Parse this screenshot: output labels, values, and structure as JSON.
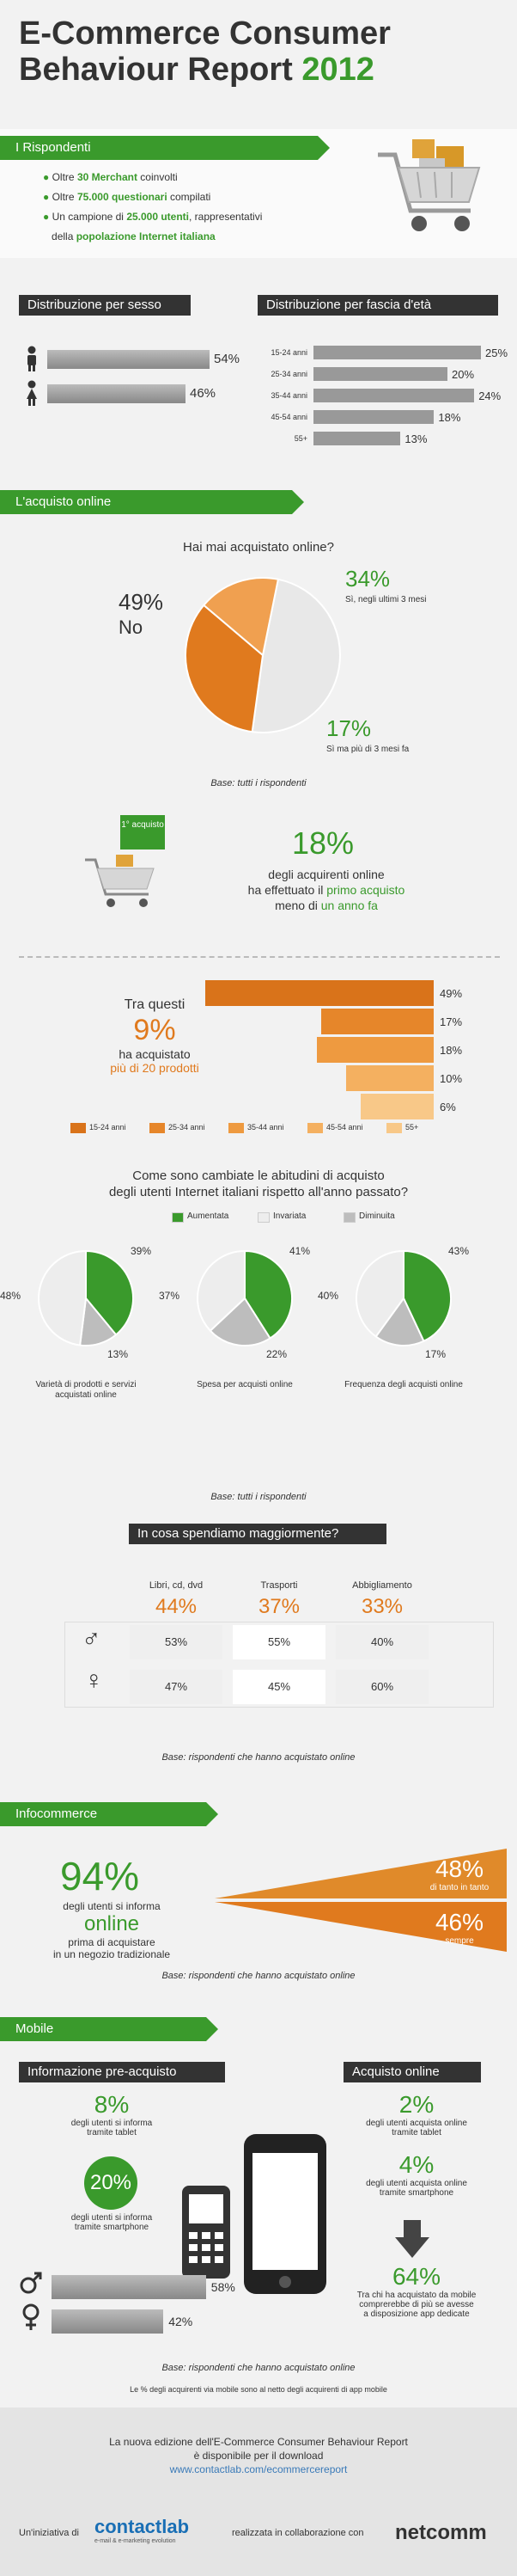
{
  "header": {
    "title_line1": "E-Commerce Consumer",
    "title_line2": "Behaviour Report",
    "year": "2012"
  },
  "respondents": {
    "title": "I Rispondenti",
    "item1_pre": "Oltre ",
    "item1_bold": "30 Merchant",
    "item1_post": " coinvolti",
    "item2_pre": "Oltre ",
    "item2_bold": "75.000 questionari",
    "item2_post": " compilati",
    "item3_pre": "Un campione di ",
    "item3_bold": "25.000 utenti",
    "item3_post": ", rappresentativi",
    "item4_pre": "della ",
    "item4_bold": "popolazione Internet italiana"
  },
  "gender_title": "Distribuzione per sesso",
  "age_title": "Distribuzione per fascia d'età",
  "purchase_title": "L'acquisto online",
  "pie_question": "Hai mai acquistato online?",
  "pie_no_pct": "49%",
  "pie_no_label": "No",
  "pie_recent_pct": "34%",
  "pie_recent_label": "Sì, negli ultimi 3 mesi",
  "pie_old_pct": "17%",
  "pie_old_label": "Sì ma più di 3 mesi fa",
  "base_all": "Base: tutti i rispondenti",
  "first_badge": "1° acquisto",
  "first_pct": "18%",
  "first_line1": "degli acquirenti online",
  "first_line2_pre": "ha effettuato il ",
  "first_line2_bold": "primo acquisto",
  "first_line3_pre": "meno di ",
  "first_line3_bold": "un anno fa",
  "twenty_line1": "Tra questi",
  "twenty_pct": "9%",
  "twenty_line2": "ha acquistato",
  "twenty_line3": "più di 20 prodotti",
  "habits_question_l1": "Come sono cambiate le abitudini di acquisto",
  "habits_question_l2": "degli utenti Internet italiani rispetto all'anno passato?",
  "habits_legend": [
    "Aumentata",
    "Invariata",
    "Diminuita"
  ],
  "habits": [
    {
      "label": "Varietà di prodotti e servizi acquistati online",
      "up": "39%",
      "same": "48%",
      "down": "13%"
    },
    {
      "label": "Spesa per acquisti online",
      "up": "41%",
      "same": "37%",
      "down": "22%"
    },
    {
      "label": "Frequenza degli acquisti online",
      "up": "43%",
      "same": "40%",
      "down": "17%"
    }
  ],
  "spend_title": "In cosa spendiamo maggiormente?",
  "spend_cols": [
    {
      "label": "Libri, cd, dvd",
      "total": "44%",
      "male": "53%",
      "female": "47%"
    },
    {
      "label": "Trasporti",
      "total": "37%",
      "male": "55%",
      "female": "45%"
    },
    {
      "label": "Abbigliamento",
      "total": "33%",
      "male": "40%",
      "female": "60%"
    }
  ],
  "base_buyers": "Base: rispondenti che hanno acquistato online",
  "info_title": "Infocommerce",
  "info_pct": "94%",
  "info_l1": "degli utenti si informa",
  "info_l2": "online",
  "info_l3": "prima di acquistare",
  "info_l4": "in un negozio tradizionale",
  "info_a_pct": "48%",
  "info_a_label": "di tanto in tanto",
  "info_b_pct": "46%",
  "info_b_label": "sempre",
  "mobile_title": "Mobile",
  "pre_title": "Informazione pre-acquisto",
  "pre1_pct": "8%",
  "pre1_l1": "degli utenti si informa",
  "pre1_l2": "tramite tablet",
  "pre2_pct": "20%",
  "pre2_l1": "degli utenti si informa",
  "pre2_l2": "tramite smartphone",
  "buy_title": "Acquisto online",
  "buy1_pct": "2%",
  "buy1_l1": "degli utenti acquista online",
  "buy1_l2": "tramite tablet",
  "buy2_pct": "4%",
  "buy2_l1": "degli utenti acquista online",
  "buy2_l2": "tramite smartphone",
  "buy3_pct": "64%",
  "buy3_l1": "Tra chi ha acquistato da mobile",
  "buy3_l2": "comprerebbe di più se avesse",
  "buy3_l3": "a disposizione app dedicate",
  "mobile_note": "Le % degli acquirenti via mobile sono al netto degli acquirenti di app mobile",
  "footer_l1": "La nuova edizione dell'E-Commerce Consumer Behaviour Report",
  "footer_l2": "è disponibile per il download",
  "footer_url": "www.contactlab.com/ecommercereport",
  "footer_init": "Un'iniziativa di",
  "footer_brand1": "contactlab",
  "footer_brand1_sub": "e-mail & e-marketing evolution",
  "footer_collab": "realizzata in collaborazione con",
  "footer_brand2": "netcomm",
  "colors": {
    "green": "#3a9a2c",
    "orange": "#e07a1e",
    "gray": "#9a9a9a",
    "light": "#e6e6e6"
  },
  "chart_data": [
    {
      "type": "bar",
      "title": "Distribuzione per sesso",
      "categories": [
        "Uomini",
        "Donne"
      ],
      "values": [
        54,
        46
      ]
    },
    {
      "type": "bar",
      "title": "Distribuzione per fascia d'età",
      "categories": [
        "15-24 anni",
        "25-34 anni",
        "35-44 anni",
        "45-54 anni",
        "55+"
      ],
      "values": [
        25,
        20,
        24,
        18,
        13
      ]
    },
    {
      "type": "pie",
      "title": "Hai mai acquistato online?",
      "categories": [
        "No",
        "Sì, negli ultimi 3 mesi",
        "Sì ma più di 3 mesi fa"
      ],
      "values": [
        49,
        34,
        17
      ]
    },
    {
      "type": "bar",
      "categories": [
        "15-24 anni",
        "25-34 anni",
        "35-44 anni",
        "45-54 anni",
        "55+"
      ],
      "values": [
        49,
        17,
        18,
        10,
        6
      ]
    },
    {
      "type": "pie",
      "title": "Varietà di prodotti e servizi acquistati online",
      "categories": [
        "Aumentata",
        "Invariata",
        "Diminuita"
      ],
      "values": [
        39,
        48,
        13
      ]
    },
    {
      "type": "pie",
      "title": "Spesa per acquisti online",
      "categories": [
        "Aumentata",
        "Invariata",
        "Diminuita"
      ],
      "values": [
        41,
        37,
        22
      ]
    },
    {
      "type": "pie",
      "title": "Frequenza degli acquisti online",
      "categories": [
        "Aumentata",
        "Invariata",
        "Diminuita"
      ],
      "values": [
        43,
        40,
        17
      ]
    },
    {
      "type": "bar",
      "title": "Mobile - sesso",
      "categories": [
        "Uomini",
        "Donne"
      ],
      "values": [
        58,
        42
      ]
    }
  ]
}
